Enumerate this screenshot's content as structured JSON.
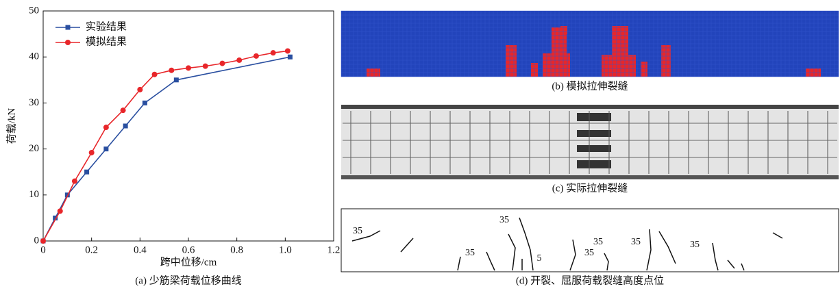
{
  "chart_data": {
    "type": "line",
    "caption": "(a) 少筋梁荷载位移曲线",
    "xlabel": "跨中位移/cm",
    "ylabel": "荷载/kN",
    "xlim": [
      0,
      1.2
    ],
    "ylim": [
      0,
      50
    ],
    "xticks": [
      0,
      0.2,
      0.4,
      0.6,
      0.8,
      {
        "value": 1,
        "label": "1.0"
      },
      1.2
    ],
    "yticks": [
      0,
      10,
      20,
      30,
      40,
      50
    ],
    "legend": "upper left",
    "series": [
      {
        "name": "实验结果",
        "color": "#2a4fa0",
        "marker": "square",
        "x": [
          0,
          0.05,
          0.1,
          0.18,
          0.26,
          0.34,
          0.42,
          0.55,
          1.02
        ],
        "values": [
          0,
          5,
          10,
          15,
          20,
          25,
          30,
          35,
          40
        ]
      },
      {
        "name": "模拟结果",
        "color": "#e8262a",
        "marker": "circle",
        "x": [
          0,
          0.07,
          0.13,
          0.2,
          0.26,
          0.33,
          0.4,
          0.46,
          0.53,
          0.6,
          0.67,
          0.74,
          0.81,
          0.88,
          0.95,
          1.01
        ],
        "values": [
          0,
          6.5,
          13,
          19.2,
          24.7,
          28.4,
          32.9,
          36.2,
          37.1,
          37.6,
          38,
          38.6,
          39.3,
          40.2,
          40.9,
          41.3
        ]
      }
    ]
  },
  "panels": [
    {
      "caption": "(b) 模拟拉伸裂缝"
    },
    {
      "caption": "(c) 实际拉伸裂缝"
    },
    {
      "caption": "(d) 开裂、屈服荷载裂缝高度点位",
      "labels": [
        "35",
        "35",
        "35",
        "5",
        "35",
        "35",
        "35",
        "35"
      ]
    }
  ]
}
